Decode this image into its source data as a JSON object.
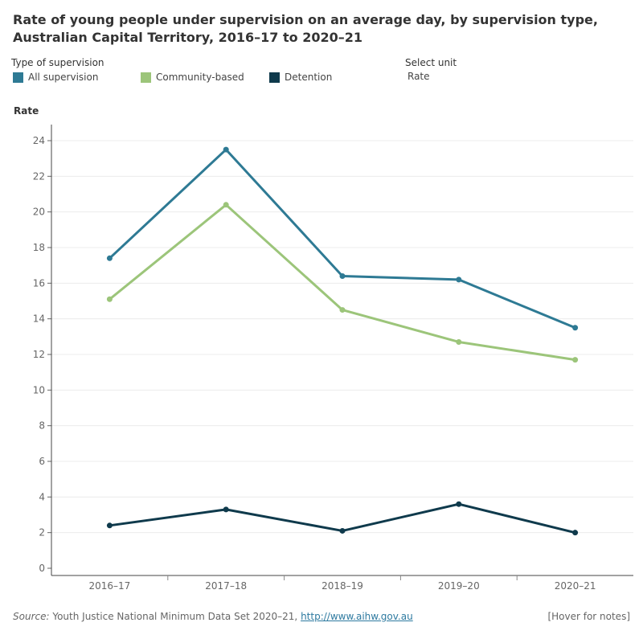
{
  "title": "Rate of young people under supervision on an average day, by supervision type, Australian Capital Territory, 2016–17 to 2020–21",
  "legend": {
    "heading": "Type of supervision",
    "items": [
      {
        "label": "All supervision",
        "color": "#2e7a94"
      },
      {
        "label": "Community-based",
        "color": "#9cc57a"
      },
      {
        "label": "Detention",
        "color": "#0f3a4c"
      }
    ]
  },
  "unit_selector": {
    "heading": "Select unit",
    "value": "Rate"
  },
  "footer": {
    "source_label": "Source:",
    "source_text": " Youth Justice National Minimum Data Set 2020–21, ",
    "link_text": "http://www.aihw.gov.au",
    "notes": "[Hover for notes]"
  },
  "chart_data": {
    "type": "line",
    "title": "Rate of young people under supervision on an average day, by supervision type, Australian Capital Territory, 2016–17 to 2020–21",
    "xlabel": "",
    "ylabel": "Rate",
    "categories": [
      "2016–17",
      "2017–18",
      "2018–19",
      "2019–20",
      "2020–21"
    ],
    "ylim": [
      0,
      24
    ],
    "yticks": [
      0,
      2,
      4,
      6,
      8,
      10,
      12,
      14,
      16,
      18,
      20,
      22,
      24
    ],
    "grid": true,
    "legend_position": "top-left",
    "series": [
      {
        "name": "All supervision",
        "color": "#2e7a94",
        "values": [
          17.4,
          23.5,
          16.4,
          16.2,
          13.5
        ]
      },
      {
        "name": "Community-based",
        "color": "#9cc57a",
        "values": [
          15.1,
          20.4,
          14.5,
          12.7,
          11.7
        ]
      },
      {
        "name": "Detention",
        "color": "#0f3a4c",
        "values": [
          2.4,
          3.3,
          2.1,
          3.6,
          2.0
        ]
      }
    ]
  }
}
